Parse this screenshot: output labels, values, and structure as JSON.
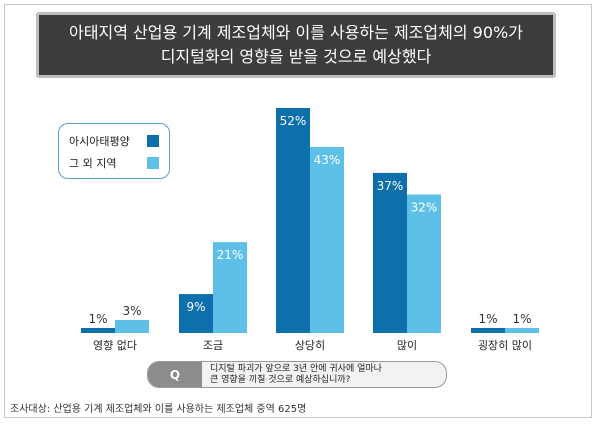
{
  "title": {
    "line1": "아태지역 산업용 기계 제조업체와 이를 사용하는 제조업체의 90%가",
    "line2": "디지털화의 영향을 받을 것으로 예상했다"
  },
  "colors": {
    "series1": "#0e6fad",
    "series2": "#5ec0e8",
    "title_bg": "#3c3c3c"
  },
  "chart_data": {
    "type": "bar",
    "categories": [
      "영향 없다",
      "조금",
      "상당히",
      "많이",
      "굉장히 많이"
    ],
    "series": [
      {
        "name": "아시아태평양",
        "values": [
          1,
          9,
          52,
          37,
          1
        ],
        "labels": [
          "1%",
          "9%",
          "52%",
          "37%",
          "1%"
        ]
      },
      {
        "name": "그 외 지역",
        "values": [
          3,
          21,
          43,
          32,
          1
        ],
        "labels": [
          "3%",
          "21%",
          "43%",
          "32%",
          "1%"
        ]
      }
    ],
    "ylim": [
      0,
      52
    ],
    "legend": "top-left",
    "grid": false
  },
  "question": {
    "badge": "Q",
    "line1": "디지털 파괴가 앞으로 3년 안에 귀사에 얼마나",
    "line2": "큰 영향을 끼칠 것으로 예상하십니까?"
  },
  "footnote": "조사대상: 산업용 기계 제조업체와 이를 사용하는 제조업체 중역 625명"
}
